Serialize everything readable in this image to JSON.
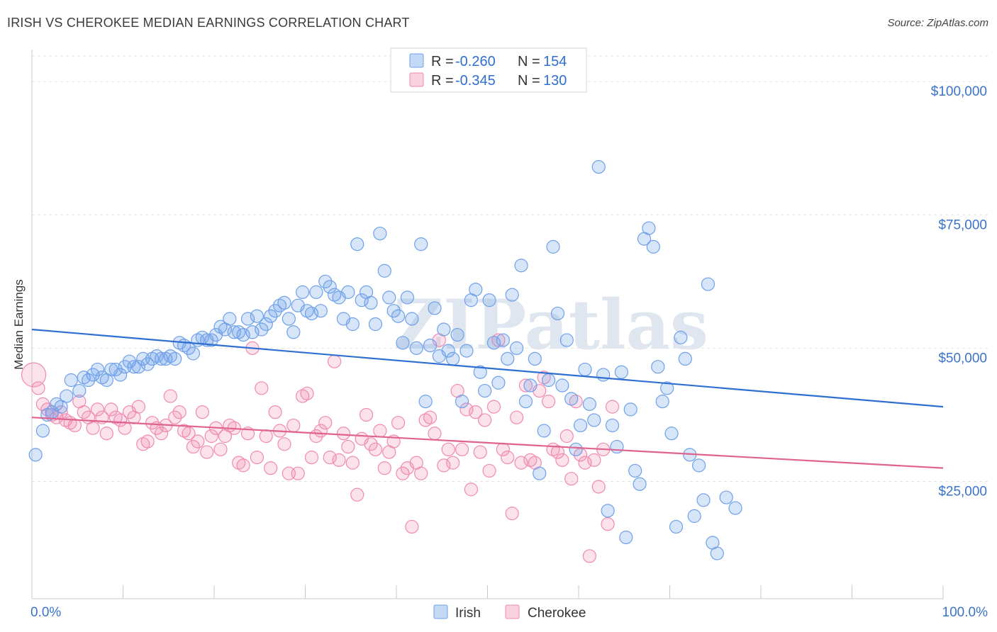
{
  "title": "IRISH VS CHEROKEE MEDIAN EARNINGS CORRELATION CHART",
  "source": "Source: ZipAtlas.com",
  "watermark": "ZIPatlas",
  "legend": {
    "r_label": "R =",
    "n_label": "N =",
    "entries": [
      {
        "name": "Irish",
        "r": "-0.260",
        "n": "154",
        "color": "#6fa0e8"
      },
      {
        "name": "Cherokee",
        "r": "-0.345",
        "n": "130",
        "color": "#f08ab0"
      }
    ]
  },
  "chart_data": {
    "type": "scatter",
    "title": "IRISH VS CHEROKEE MEDIAN EARNINGS CORRELATION CHART",
    "xlabel": "",
    "ylabel": "Median Earnings",
    "xlim": [
      0,
      100
    ],
    "ylim": [
      3000,
      106000
    ],
    "x_tick_labels": [
      "0.0%",
      "100.0%"
    ],
    "y_ticks": [
      25000,
      50000,
      75000,
      100000
    ],
    "y_tick_labels": [
      "$25,000",
      "$50,000",
      "$75,000",
      "$100,000"
    ],
    "grid": true,
    "legend_position": "top-center",
    "series": [
      {
        "name": "Irish",
        "color": "#6fa0e8",
        "line_color": "#2f6fd1",
        "trend": {
          "x": [
            0,
            100
          ],
          "y": [
            53500,
            39000
          ]
        },
        "points": [
          [
            0.4,
            30000
          ],
          [
            1.2,
            34500
          ],
          [
            1.7,
            37500
          ],
          [
            2.2,
            38000
          ],
          [
            2.7,
            39500
          ],
          [
            3.2,
            39000
          ],
          [
            3.8,
            41000
          ],
          [
            4.3,
            44000
          ],
          [
            5.2,
            42000
          ],
          [
            5.7,
            44500
          ],
          [
            6.2,
            44000
          ],
          [
            6.7,
            45000
          ],
          [
            7.2,
            46000
          ],
          [
            7.7,
            44500
          ],
          [
            8.2,
            44000
          ],
          [
            8.7,
            46000
          ],
          [
            9.2,
            46000
          ],
          [
            9.7,
            45000
          ],
          [
            10.2,
            46500
          ],
          [
            10.7,
            47500
          ],
          [
            11.2,
            46500
          ],
          [
            11.7,
            46500
          ],
          [
            12.2,
            48000
          ],
          [
            12.7,
            47000
          ],
          [
            13.2,
            48000
          ],
          [
            13.7,
            48500
          ],
          [
            14.2,
            48000
          ],
          [
            14.7,
            48000
          ],
          [
            15.2,
            48500
          ],
          [
            15.7,
            48000
          ],
          [
            16.2,
            51000
          ],
          [
            16.7,
            50500
          ],
          [
            17.2,
            50000
          ],
          [
            17.7,
            49000
          ],
          [
            18.2,
            51500
          ],
          [
            18.7,
            52000
          ],
          [
            19.2,
            51500
          ],
          [
            19.7,
            51500
          ],
          [
            20.2,
            52500
          ],
          [
            20.7,
            54000
          ],
          [
            21.2,
            53500
          ],
          [
            21.7,
            55500
          ],
          [
            22.2,
            53000
          ],
          [
            22.7,
            53000
          ],
          [
            23.2,
            52500
          ],
          [
            23.7,
            55500
          ],
          [
            24.2,
            53000
          ],
          [
            24.7,
            56000
          ],
          [
            25.2,
            53500
          ],
          [
            25.7,
            54500
          ],
          [
            26.2,
            56000
          ],
          [
            26.7,
            57000
          ],
          [
            27.2,
            58000
          ],
          [
            27.7,
            58500
          ],
          [
            28.2,
            55500
          ],
          [
            28.7,
            53000
          ],
          [
            29.2,
            58000
          ],
          [
            29.7,
            60500
          ],
          [
            30.2,
            57000
          ],
          [
            30.7,
            56500
          ],
          [
            31.2,
            60500
          ],
          [
            31.7,
            57000
          ],
          [
            32.2,
            62500
          ],
          [
            32.7,
            61500
          ],
          [
            33.2,
            60000
          ],
          [
            33.7,
            59500
          ],
          [
            34.2,
            55500
          ],
          [
            34.7,
            60500
          ],
          [
            35.2,
            54500
          ],
          [
            35.7,
            69500
          ],
          [
            36.2,
            59000
          ],
          [
            36.7,
            60500
          ],
          [
            37.2,
            58500
          ],
          [
            37.7,
            54500
          ],
          [
            38.2,
            71500
          ],
          [
            38.7,
            64500
          ],
          [
            39.2,
            59500
          ],
          [
            39.7,
            57000
          ],
          [
            40.2,
            56000
          ],
          [
            40.7,
            51000
          ],
          [
            41.2,
            59500
          ],
          [
            41.7,
            55500
          ],
          [
            42.2,
            50000
          ],
          [
            42.7,
            69500
          ],
          [
            43.2,
            40000
          ],
          [
            43.7,
            50500
          ],
          [
            44.2,
            57500
          ],
          [
            44.7,
            48500
          ],
          [
            45.2,
            53500
          ],
          [
            45.7,
            49500
          ],
          [
            46.2,
            48000
          ],
          [
            46.7,
            52500
          ],
          [
            47.2,
            40000
          ],
          [
            47.7,
            49500
          ],
          [
            48.2,
            59000
          ],
          [
            48.7,
            61000
          ],
          [
            49.2,
            45500
          ],
          [
            49.7,
            42000
          ],
          [
            50.2,
            59000
          ],
          [
            50.7,
            51000
          ],
          [
            51.2,
            43500
          ],
          [
            51.7,
            51500
          ],
          [
            52.2,
            48000
          ],
          [
            52.7,
            60000
          ],
          [
            53.2,
            50000
          ],
          [
            53.7,
            65500
          ],
          [
            54.2,
            40000
          ],
          [
            54.7,
            43000
          ],
          [
            55.2,
            48000
          ],
          [
            55.7,
            26500
          ],
          [
            56.2,
            34500
          ],
          [
            56.7,
            44000
          ],
          [
            57.2,
            69000
          ],
          [
            57.7,
            56500
          ],
          [
            58.2,
            43000
          ],
          [
            58.7,
            51500
          ],
          [
            59.2,
            40500
          ],
          [
            59.7,
            31000
          ],
          [
            60.2,
            35500
          ],
          [
            60.7,
            46000
          ],
          [
            61.2,
            39500
          ],
          [
            61.7,
            36500
          ],
          [
            62.2,
            84000
          ],
          [
            62.7,
            45000
          ],
          [
            63.2,
            19500
          ],
          [
            63.7,
            35500
          ],
          [
            64.2,
            31500
          ],
          [
            64.7,
            45500
          ],
          [
            65.2,
            14500
          ],
          [
            65.7,
            38500
          ],
          [
            66.2,
            27000
          ],
          [
            66.7,
            24500
          ],
          [
            67.2,
            70500
          ],
          [
            67.7,
            72500
          ],
          [
            68.2,
            69000
          ],
          [
            68.7,
            46500
          ],
          [
            69.2,
            40000
          ],
          [
            69.7,
            42500
          ],
          [
            70.2,
            34000
          ],
          [
            70.7,
            16500
          ],
          [
            71.2,
            52000
          ],
          [
            71.7,
            48000
          ],
          [
            72.2,
            30000
          ],
          [
            72.7,
            18500
          ],
          [
            73.2,
            28000
          ],
          [
            73.7,
            21500
          ],
          [
            74.2,
            62000
          ],
          [
            74.7,
            13500
          ],
          [
            75.2,
            11500
          ],
          [
            76.2,
            22000
          ],
          [
            77.2,
            20000
          ]
        ]
      },
      {
        "name": "Cherokee",
        "color": "#f08ab0",
        "line_color": "#e0628e",
        "trend": {
          "x": [
            0,
            100
          ],
          "y": [
            37000,
            27500
          ]
        },
        "points": [
          [
            0.2,
            45000
          ],
          [
            0.7,
            42500
          ],
          [
            1.2,
            39500
          ],
          [
            1.7,
            38500
          ],
          [
            2.2,
            37500
          ],
          [
            2.7,
            37000
          ],
          [
            3.2,
            38000
          ],
          [
            3.7,
            36500
          ],
          [
            4.2,
            36000
          ],
          [
            4.7,
            35500
          ],
          [
            5.2,
            40000
          ],
          [
            5.7,
            38000
          ],
          [
            6.2,
            37000
          ],
          [
            6.7,
            35000
          ],
          [
            7.2,
            38500
          ],
          [
            7.7,
            37000
          ],
          [
            8.2,
            34000
          ],
          [
            8.7,
            38500
          ],
          [
            9.2,
            37000
          ],
          [
            9.7,
            36500
          ],
          [
            10.2,
            35000
          ],
          [
            10.7,
            38000
          ],
          [
            11.2,
            37000
          ],
          [
            11.7,
            39000
          ],
          [
            12.2,
            32000
          ],
          [
            12.7,
            32500
          ],
          [
            13.2,
            36000
          ],
          [
            13.7,
            35000
          ],
          [
            14.2,
            34000
          ],
          [
            14.7,
            35500
          ],
          [
            15.2,
            41000
          ],
          [
            15.7,
            37000
          ],
          [
            16.2,
            38000
          ],
          [
            16.7,
            34500
          ],
          [
            17.2,
            34000
          ],
          [
            17.7,
            31500
          ],
          [
            18.2,
            32500
          ],
          [
            18.7,
            38000
          ],
          [
            19.2,
            30500
          ],
          [
            19.7,
            33500
          ],
          [
            20.2,
            35000
          ],
          [
            20.7,
            31000
          ],
          [
            21.2,
            33500
          ],
          [
            21.7,
            35500
          ],
          [
            22.2,
            35000
          ],
          [
            22.7,
            28500
          ],
          [
            23.2,
            28000
          ],
          [
            23.7,
            34000
          ],
          [
            24.2,
            50000
          ],
          [
            24.7,
            29500
          ],
          [
            25.2,
            42500
          ],
          [
            25.7,
            33500
          ],
          [
            26.2,
            27500
          ],
          [
            26.7,
            38000
          ],
          [
            27.2,
            34500
          ],
          [
            27.7,
            32000
          ],
          [
            28.2,
            26500
          ],
          [
            28.7,
            35500
          ],
          [
            29.2,
            26500
          ],
          [
            29.7,
            41000
          ],
          [
            30.2,
            41500
          ],
          [
            30.7,
            29500
          ],
          [
            31.2,
            33500
          ],
          [
            31.7,
            34500
          ],
          [
            32.2,
            36000
          ],
          [
            32.7,
            29500
          ],
          [
            33.2,
            47500
          ],
          [
            33.7,
            29000
          ],
          [
            34.2,
            34000
          ],
          [
            34.7,
            31500
          ],
          [
            35.2,
            28500
          ],
          [
            35.7,
            22500
          ],
          [
            36.2,
            33000
          ],
          [
            36.7,
            37500
          ],
          [
            37.2,
            32000
          ],
          [
            37.7,
            31000
          ],
          [
            38.2,
            34500
          ],
          [
            38.7,
            27500
          ],
          [
            39.2,
            30500
          ],
          [
            39.7,
            32500
          ],
          [
            40.2,
            36000
          ],
          [
            40.7,
            26500
          ],
          [
            41.2,
            27500
          ],
          [
            41.7,
            16500
          ],
          [
            42.2,
            28500
          ],
          [
            42.7,
            26500
          ],
          [
            43.2,
            36500
          ],
          [
            43.7,
            37000
          ],
          [
            44.2,
            34000
          ],
          [
            44.7,
            51500
          ],
          [
            45.2,
            28000
          ],
          [
            45.7,
            31000
          ],
          [
            46.2,
            28500
          ],
          [
            46.7,
            42000
          ],
          [
            47.2,
            31000
          ],
          [
            47.7,
            38500
          ],
          [
            48.2,
            23500
          ],
          [
            48.7,
            38000
          ],
          [
            49.2,
            30500
          ],
          [
            49.7,
            36500
          ],
          [
            50.2,
            27000
          ],
          [
            50.7,
            39000
          ],
          [
            51.2,
            51500
          ],
          [
            51.7,
            31000
          ],
          [
            52.2,
            29500
          ],
          [
            52.7,
            19000
          ],
          [
            53.2,
            37000
          ],
          [
            53.7,
            28500
          ],
          [
            54.2,
            43000
          ],
          [
            54.7,
            29000
          ],
          [
            55.2,
            28500
          ],
          [
            55.7,
            42000
          ],
          [
            56.2,
            44500
          ],
          [
            56.7,
            40000
          ],
          [
            57.2,
            31000
          ],
          [
            57.7,
            30500
          ],
          [
            58.2,
            29000
          ],
          [
            58.7,
            33500
          ],
          [
            59.2,
            25500
          ],
          [
            59.7,
            40000
          ],
          [
            60.2,
            30000
          ],
          [
            60.7,
            28500
          ],
          [
            61.2,
            11000
          ],
          [
            61.7,
            29000
          ],
          [
            62.2,
            24000
          ],
          [
            62.7,
            31000
          ],
          [
            63.2,
            17000
          ],
          [
            63.7,
            39000
          ]
        ]
      }
    ]
  },
  "bottom_legend": [
    {
      "label": "Irish",
      "color": "#6fa0e8"
    },
    {
      "label": "Cherokee",
      "color": "#f08ab0"
    }
  ]
}
